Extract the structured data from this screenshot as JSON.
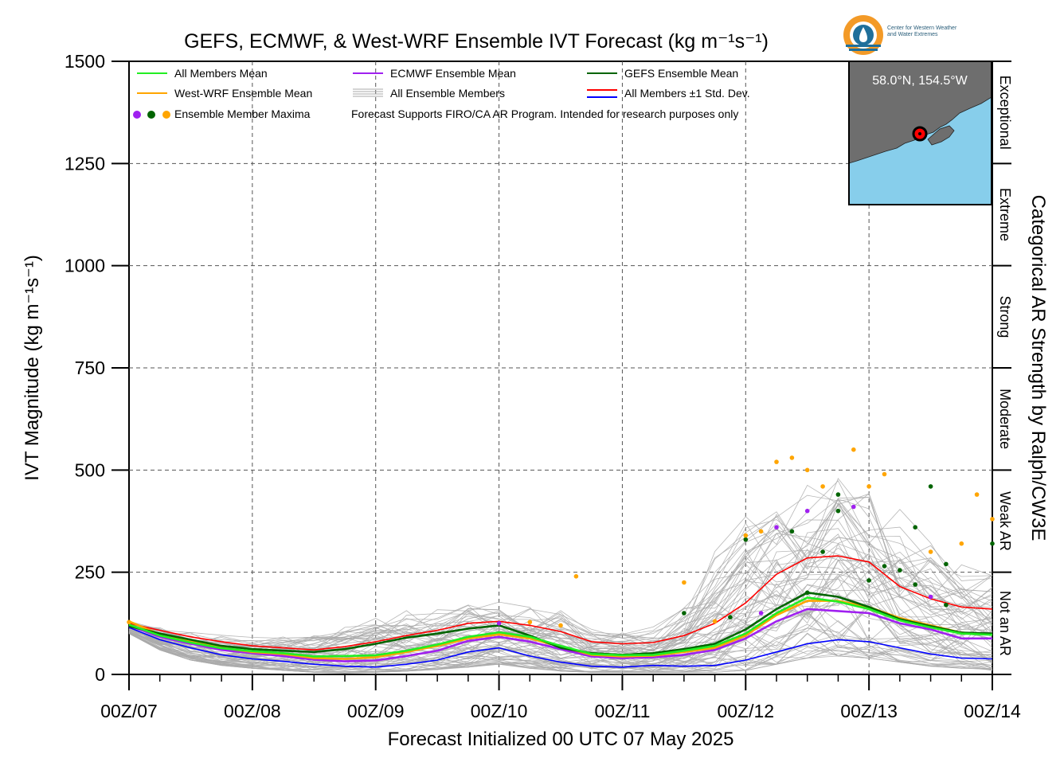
{
  "title": "GEFS, ECMWF, & West-WRF Ensemble IVT Forecast (kg m⁻¹s⁻¹)",
  "xlabel": "Forecast Initialized 00 UTC 07 May 2025",
  "ylabel": "IVT Magnitude (kg m⁻¹s⁻¹)",
  "right_label": "Categorical AR Strength by Ralph/CW3E",
  "note": "Forecast Supports FIRO/CA AR Program. Intended for research purposes only",
  "location": "58.0°N, 154.5°W",
  "logo_text": [
    "Center for Western Weather",
    "and Water Extremes"
  ],
  "legend": [
    {
      "label": "All Members Mean",
      "color": "#22ee22",
      "kind": "line"
    },
    {
      "label": "ECMWF Ensemble Mean",
      "color": "#a020f0",
      "kind": "line"
    },
    {
      "label": "GEFS Ensemble Mean",
      "color": "#006400",
      "kind": "line"
    },
    {
      "label": "West-WRF Ensemble Mean",
      "color": "#ffa500",
      "kind": "line"
    },
    {
      "label": "All Ensemble Members",
      "color": "#aaaaaa",
      "kind": "thin"
    },
    {
      "label": "All Members ±1 Std. Dev.",
      "color": "#ff0000",
      "color2": "#0000ff",
      "kind": "double"
    },
    {
      "label": "Ensemble Member Maxima",
      "colors": [
        "#a020f0",
        "#006400",
        "#ffa500"
      ],
      "kind": "dots"
    }
  ],
  "categories": [
    {
      "label": "Not an AR",
      "range": [
        0,
        250
      ]
    },
    {
      "label": "Weak AR",
      "range": [
        250,
        500
      ]
    },
    {
      "label": "Moderate",
      "range": [
        500,
        750
      ]
    },
    {
      "label": "Strong",
      "range": [
        750,
        1000
      ]
    },
    {
      "label": "Extreme",
      "range": [
        1000,
        1250
      ]
    },
    {
      "label": "Exceptional",
      "range": [
        1250,
        1500
      ]
    }
  ],
  "colors": {
    "land": "#6e6e6e",
    "ocean": "#87ceeb",
    "grid": "#555555",
    "members": "#aaaaaa"
  },
  "chart_data": {
    "type": "line",
    "ylim": [
      0,
      1500
    ],
    "xlim": [
      0,
      168
    ],
    "x_unit": "forecast hour",
    "yticks": [
      0,
      250,
      500,
      750,
      1000,
      1250,
      1500
    ],
    "xticks": [
      {
        "value": 0,
        "label": "00Z/07"
      },
      {
        "value": 24,
        "label": "00Z/08"
      },
      {
        "value": 48,
        "label": "00Z/09"
      },
      {
        "value": 72,
        "label": "00Z/10"
      },
      {
        "value": 96,
        "label": "00Z/11"
      },
      {
        "value": 120,
        "label": "00Z/12"
      },
      {
        "value": 144,
        "label": "00Z/13"
      },
      {
        "value": 168,
        "label": "00Z/14"
      }
    ],
    "grid": true,
    "legend_position": "top",
    "x": [
      0,
      6,
      12,
      18,
      24,
      30,
      36,
      42,
      48,
      54,
      60,
      66,
      72,
      78,
      84,
      90,
      96,
      102,
      108,
      114,
      120,
      126,
      132,
      138,
      144,
      150,
      156,
      162,
      168
    ],
    "series": [
      {
        "name": "All Members Mean",
        "color": "#22ee22",
        "values": [
          122,
          95,
          78,
          64,
          57,
          52,
          44,
          45,
          47,
          58,
          73,
          92,
          103,
          92,
          70,
          50,
          47,
          48,
          58,
          70,
          100,
          150,
          188,
          178,
          160,
          132,
          115,
          100,
          97
        ]
      },
      {
        "name": "West-WRF Ensemble Mean",
        "color": "#ffa500",
        "values": [
          130,
          98,
          80,
          65,
          55,
          50,
          40,
          38,
          42,
          55,
          70,
          88,
          98,
          88,
          68,
          48,
          44,
          46,
          55,
          65,
          95,
          145,
          180,
          180,
          165,
          138,
          120,
          102,
          98
        ]
      },
      {
        "name": "ECMWF Ensemble Mean",
        "color": "#a020f0",
        "values": [
          120,
          92,
          75,
          60,
          52,
          45,
          36,
          32,
          34,
          45,
          58,
          82,
          92,
          80,
          62,
          44,
          40,
          42,
          48,
          60,
          88,
          130,
          160,
          155,
          150,
          125,
          110,
          88,
          88
        ]
      },
      {
        "name": "GEFS Ensemble Mean",
        "color": "#006400",
        "values": [
          118,
          100,
          85,
          70,
          62,
          58,
          55,
          62,
          75,
          90,
          100,
          112,
          120,
          95,
          65,
          52,
          48,
          52,
          62,
          75,
          110,
          160,
          200,
          190,
          165,
          135,
          118,
          102,
          100
        ]
      },
      {
        "name": "All Members ±1 Std. Dev. (upper)",
        "color": "#ff0000",
        "values": [
          125,
          108,
          92,
          80,
          70,
          65,
          60,
          68,
          80,
          95,
          108,
          125,
          130,
          120,
          105,
          80,
          75,
          78,
          95,
          125,
          175,
          245,
          285,
          290,
          275,
          215,
          185,
          165,
          160
        ]
      },
      {
        "name": "All Members ±1 Std. Dev. (lower)",
        "color": "#0000ff",
        "values": [
          115,
          85,
          65,
          48,
          38,
          32,
          25,
          20,
          18,
          25,
          35,
          55,
          65,
          45,
          30,
          20,
          18,
          22,
          20,
          22,
          35,
          55,
          75,
          85,
          80,
          65,
          50,
          40,
          38
        ]
      }
    ],
    "member_band": {
      "low": [
        100,
        60,
        35,
        22,
        15,
        10,
        5,
        3,
        5,
        8,
        12,
        18,
        25,
        15,
        8,
        5,
        5,
        5,
        5,
        5,
        10,
        25,
        40,
        45,
        40,
        30,
        20,
        15,
        10
      ],
      "high": [
        135,
        125,
        115,
        105,
        100,
        105,
        120,
        140,
        155,
        165,
        175,
        185,
        195,
        190,
        170,
        130,
        120,
        125,
        200,
        330,
        450,
        500,
        540,
        560,
        520,
        420,
        350,
        300,
        280
      ]
    },
    "maxima": [
      {
        "x": 0,
        "y": 128,
        "color": "#ffa500"
      },
      {
        "x": 72,
        "y": 125,
        "color": "#a020f0"
      },
      {
        "x": 78,
        "y": 128,
        "color": "#ffa500"
      },
      {
        "x": 84,
        "y": 120,
        "color": "#ffa500"
      },
      {
        "x": 87,
        "y": 240,
        "color": "#ffa500"
      },
      {
        "x": 108,
        "y": 150,
        "color": "#006400"
      },
      {
        "x": 114,
        "y": 130,
        "color": "#ffa500"
      },
      {
        "x": 117,
        "y": 140,
        "color": "#006400"
      },
      {
        "x": 108,
        "y": 225,
        "color": "#ffa500"
      },
      {
        "x": 120,
        "y": 330,
        "color": "#006400"
      },
      {
        "x": 120,
        "y": 340,
        "color": "#ffa500"
      },
      {
        "x": 123,
        "y": 150,
        "color": "#a020f0"
      },
      {
        "x": 123,
        "y": 350,
        "color": "#ffa500"
      },
      {
        "x": 126,
        "y": 520,
        "color": "#ffa500"
      },
      {
        "x": 126,
        "y": 360,
        "color": "#a020f0"
      },
      {
        "x": 129,
        "y": 530,
        "color": "#ffa500"
      },
      {
        "x": 129,
        "y": 350,
        "color": "#006400"
      },
      {
        "x": 132,
        "y": 500,
        "color": "#ffa500"
      },
      {
        "x": 132,
        "y": 400,
        "color": "#a020f0"
      },
      {
        "x": 132,
        "y": 200,
        "color": "#006400"
      },
      {
        "x": 135,
        "y": 460,
        "color": "#ffa500"
      },
      {
        "x": 135,
        "y": 300,
        "color": "#006400"
      },
      {
        "x": 138,
        "y": 440,
        "color": "#006400"
      },
      {
        "x": 138,
        "y": 400,
        "color": "#006400"
      },
      {
        "x": 141,
        "y": 550,
        "color": "#ffa500"
      },
      {
        "x": 141,
        "y": 410,
        "color": "#a020f0"
      },
      {
        "x": 144,
        "y": 460,
        "color": "#ffa500"
      },
      {
        "x": 144,
        "y": 230,
        "color": "#006400"
      },
      {
        "x": 147,
        "y": 490,
        "color": "#ffa500"
      },
      {
        "x": 147,
        "y": 265,
        "color": "#006400"
      },
      {
        "x": 150,
        "y": 255,
        "color": "#006400"
      },
      {
        "x": 153,
        "y": 360,
        "color": "#006400"
      },
      {
        "x": 153,
        "y": 220,
        "color": "#006400"
      },
      {
        "x": 156,
        "y": 460,
        "color": "#006400"
      },
      {
        "x": 156,
        "y": 190,
        "color": "#a020f0"
      },
      {
        "x": 156,
        "y": 300,
        "color": "#ffa500"
      },
      {
        "x": 159,
        "y": 270,
        "color": "#006400"
      },
      {
        "x": 159,
        "y": 170,
        "color": "#006400"
      },
      {
        "x": 162,
        "y": 320,
        "color": "#ffa500"
      },
      {
        "x": 165,
        "y": 440,
        "color": "#ffa500"
      },
      {
        "x": 168,
        "y": 320,
        "color": "#006400"
      },
      {
        "x": 168,
        "y": 380,
        "color": "#ffa500"
      }
    ]
  }
}
